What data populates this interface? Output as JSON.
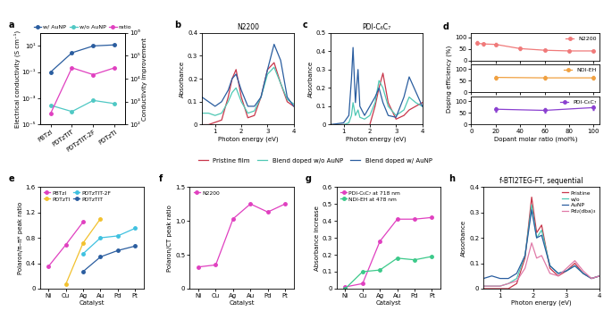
{
  "chart_data": [
    {
      "panel": "a",
      "type": "line",
      "log": "y",
      "marker": "o",
      "categories": [
        "PBTzI",
        "PDTzTIT",
        "PDTzTIT-2F",
        "PDTzTI"
      ],
      "y_label": "Electrical conductivity (S cm⁻¹)",
      "y2_label": "Conductivity improvement",
      "ylim": [
        1e-05,
        100
      ],
      "yticks": [
        {
          "value": 1e-05,
          "label": "10⁻⁵"
        },
        {
          "value": 0.001,
          "label": "10⁻³"
        },
        {
          "value": 0.1,
          "label": "10⁻¹"
        },
        {
          "value": 10,
          "label": "10¹"
        }
      ],
      "y2lim": [
        100,
        1000000
      ],
      "y2ticks": [
        {
          "value": 100,
          "label": "10²"
        },
        {
          "value": 1000,
          "label": "10³"
        },
        {
          "value": 10000,
          "label": "10⁴"
        },
        {
          "value": 100000,
          "label": "10⁵"
        },
        {
          "value": 1000000,
          "label": "10⁶"
        }
      ],
      "legend": "lower center",
      "series": [
        {
          "name": "w/ AuNP",
          "color": "#2a5d9f",
          "values": [
            0.1,
            3,
            10,
            12
          ]
        },
        {
          "name": "w/o AuNP",
          "color": "#4fc8c4",
          "values": [
            0.0003,
            0.0001,
            0.0007,
            0.0004
          ]
        },
        {
          "name": "ratio",
          "color": "#e040c0",
          "axis": "y2",
          "values": [
            300,
            30000,
            15000,
            30000
          ]
        }
      ]
    },
    {
      "panel": "b",
      "type": "line",
      "title": "N2200",
      "x_label": "Photon energy (eV)",
      "y_label": "Absorbance",
      "x": [
        0.5,
        0.75,
        1.0,
        1.25,
        1.5,
        1.65,
        1.8,
        2.0,
        2.25,
        2.5,
        2.75,
        3.0,
        3.25,
        3.5,
        3.75,
        4.0
      ],
      "xlim": [
        0.5,
        4
      ],
      "xticks": [
        1,
        2,
        3,
        4
      ],
      "ylim": [
        0,
        0.4
      ],
      "yticks": [
        0,
        0.1,
        0.2,
        0.3,
        0.4
      ],
      "legend": "upper center",
      "series": [
        {
          "name": "Pristine film",
          "color": "#c8364a",
          "values": [
            0.0,
            0.0,
            0.01,
            0.02,
            0.12,
            0.2,
            0.24,
            0.12,
            0.03,
            0.04,
            0.12,
            0.24,
            0.27,
            0.18,
            0.1,
            0.08
          ]
        },
        {
          "name": "Blend doped w/o AuNP",
          "color": "#4fc8b4",
          "values": [
            0.05,
            0.05,
            0.04,
            0.05,
            0.1,
            0.14,
            0.16,
            0.1,
            0.05,
            0.06,
            0.12,
            0.22,
            0.25,
            0.18,
            0.11,
            0.09
          ]
        },
        {
          "name": "Blend doped w/ AuNP",
          "color": "#2a5d9f",
          "values": [
            0.12,
            0.1,
            0.08,
            0.1,
            0.15,
            0.2,
            0.22,
            0.15,
            0.08,
            0.08,
            0.12,
            0.24,
            0.35,
            0.28,
            0.12,
            0.08
          ]
        }
      ]
    },
    {
      "panel": "c",
      "type": "line",
      "title": "PDI-C₆C₇",
      "x_label": "Photon energy (eV)",
      "y_label": "Absorbance",
      "x": [
        0.5,
        1.0,
        1.2,
        1.3,
        1.36,
        1.45,
        1.55,
        1.62,
        1.8,
        2.0,
        2.2,
        2.35,
        2.5,
        2.7,
        3.0,
        3.3,
        3.5,
        3.75,
        4.0
      ],
      "xlim": [
        0.5,
        4
      ],
      "xticks": [
        1,
        2,
        3,
        4
      ],
      "ylim": [
        0,
        0.5
      ],
      "yticks": [
        0,
        0.1,
        0.2,
        0.3,
        0.4,
        0.5
      ],
      "series": [
        {
          "name": "Pristine film",
          "color": "#c8364a",
          "values": [
            0,
            0,
            0,
            0,
            0,
            0,
            0,
            0,
            0,
            0,
            0.1,
            0.2,
            0.28,
            0.12,
            0.03,
            0.05,
            0.08,
            0.1,
            0.12
          ]
        },
        {
          "name": "Blend doped w/o AuNP",
          "color": "#4fc8b4",
          "values": [
            0,
            0,
            0.01,
            0.05,
            0.12,
            0.05,
            0.08,
            0.04,
            0.03,
            0.05,
            0.12,
            0.24,
            0.2,
            0.1,
            0.05,
            0.08,
            0.15,
            0.12,
            0.1
          ]
        },
        {
          "name": "Blend doped w/ AuNP",
          "color": "#2a5d9f",
          "values": [
            0,
            0.01,
            0.05,
            0.25,
            0.42,
            0.12,
            0.3,
            0.1,
            0.05,
            0.1,
            0.15,
            0.2,
            0.12,
            0.05,
            0.04,
            0.15,
            0.26,
            0.18,
            0.1
          ]
        }
      ]
    },
    {
      "panel": "d",
      "type": "errorbar",
      "marker": "o",
      "x_label": "Dopant molar ratio (mol%)",
      "y_label": "Doping efficiency (%)",
      "xlim": [
        0,
        105
      ],
      "xticks": [
        0,
        20,
        40,
        60,
        80,
        100
      ],
      "ylim": [
        0,
        120
      ],
      "yticks": [
        0,
        50,
        100
      ],
      "legend": "upper right",
      "panels": [
        {
          "name": "N2200",
          "color": "#f07a7a",
          "x": [
            5,
            10,
            20,
            40,
            60,
            80,
            100
          ],
          "values": [
            75,
            72,
            70,
            52,
            45,
            42,
            42
          ],
          "errors": [
            8,
            6,
            5,
            5,
            5,
            4,
            4
          ]
        },
        {
          "name": "NDI-EH",
          "color": "#f0a040",
          "x": [
            20,
            60,
            100
          ],
          "values": [
            65,
            63,
            63
          ],
          "errors": [
            8,
            8,
            8
          ]
        },
        {
          "name": "PDI-C₆C₇",
          "color": "#8a3fd0",
          "x": [
            20,
            60,
            100
          ],
          "values": [
            65,
            60,
            72
          ],
          "errors": [
            10,
            8,
            10
          ]
        }
      ]
    },
    {
      "panel": "e",
      "type": "line",
      "marker": "o",
      "categories": [
        "Ni",
        "Cu",
        "Ag",
        "Au",
        "Pd",
        "Pt"
      ],
      "x_label": "Catalyst",
      "y_label": "Polaron/π–π* peak ratio",
      "ylim": [
        0,
        1.6
      ],
      "yticks": [
        0,
        0.4,
        0.8,
        1.2,
        1.6
      ],
      "legend": "upper left",
      "series": [
        {
          "name": "PBTzI",
          "color": "#e040c0",
          "values": [
            0.35,
            0.69,
            1.05,
            null,
            null,
            null
          ]
        },
        {
          "name": "PDTzTI",
          "color": "#f2c12e",
          "values": [
            null,
            0.07,
            0.72,
            1.1,
            null,
            null
          ]
        },
        {
          "name": "PDTzTIT-2F",
          "color": "#3fc1e0",
          "values": [
            null,
            null,
            0.55,
            0.8,
            0.83,
            0.95
          ]
        },
        {
          "name": "PDTzTIT",
          "color": "#2a5d9f",
          "values": [
            null,
            null,
            0.27,
            0.5,
            0.6,
            0.67
          ]
        }
      ]
    },
    {
      "panel": "f",
      "type": "line",
      "marker": "o",
      "categories": [
        "Ni",
        "Cu",
        "Ag",
        "Au",
        "Pd",
        "Pt"
      ],
      "x_label": "Catalyst",
      "y_label": "Polaron/CT peak ratio",
      "ylim": [
        0,
        1.5
      ],
      "yticks": [
        0,
        0.5,
        1.0,
        1.5
      ],
      "legend": "upper left",
      "series": [
        {
          "name": "N2200",
          "color": "#e040c0",
          "values": [
            0.32,
            0.35,
            1.03,
            1.25,
            1.13,
            1.25
          ]
        }
      ]
    },
    {
      "panel": "g",
      "type": "line",
      "marker": "o",
      "categories": [
        "Ni",
        "Cu",
        "Ag",
        "Au",
        "Pd",
        "Pt"
      ],
      "x_label": "Catalyst",
      "y_label": "Absorbance increase",
      "ylim": [
        0,
        0.6
      ],
      "yticks": [
        0,
        0.1,
        0.2,
        0.3,
        0.4,
        0.5,
        0.6
      ],
      "legend": "upper left",
      "series": [
        {
          "name": "PDI-C₆C₇ at 718 nm",
          "color": "#e040c0",
          "values": [
            0.01,
            0.03,
            0.28,
            0.41,
            0.41,
            0.42
          ]
        },
        {
          "name": "NDI-EH at 478 nm",
          "color": "#3cc98a",
          "values": [
            0.0,
            0.1,
            0.11,
            0.18,
            0.17,
            0.19
          ]
        }
      ]
    },
    {
      "panel": "h",
      "type": "line",
      "title": "f-BTI2TEG-FT, sequential",
      "x_label": "Photon energy (eV)",
      "y_label": "Absorbance",
      "x": [
        0.5,
        0.75,
        1.0,
        1.25,
        1.5,
        1.75,
        1.95,
        2.1,
        2.25,
        2.5,
        2.75,
        3.0,
        3.25,
        3.5,
        3.75,
        4.0
      ],
      "xlim": [
        0.5,
        4
      ],
      "xticks": [
        1,
        2,
        3,
        4
      ],
      "ylim": [
        0,
        0.4
      ],
      "yticks": [
        0,
        0.1,
        0.2,
        0.3,
        0.4
      ],
      "legend": "upper right",
      "series": [
        {
          "name": "Pristine",
          "color": "#c8364a",
          "values": [
            0,
            0,
            0,
            0,
            0.02,
            0.12,
            0.36,
            0.22,
            0.25,
            0.08,
            0.05,
            0.07,
            0.1,
            0.06,
            0.04,
            0.05
          ]
        },
        {
          "name": "w/o",
          "color": "#4fc8b4",
          "values": [
            0.01,
            0.01,
            0.01,
            0.02,
            0.04,
            0.13,
            0.33,
            0.2,
            0.23,
            0.09,
            0.06,
            0.07,
            0.09,
            0.06,
            0.04,
            0.05
          ]
        },
        {
          "name": "AuNP",
          "color": "#2a5d9f",
          "values": [
            0.04,
            0.05,
            0.04,
            0.04,
            0.06,
            0.13,
            0.31,
            0.2,
            0.21,
            0.09,
            0.06,
            0.07,
            0.09,
            0.06,
            0.04,
            0.05
          ]
        },
        {
          "name": "Pd₂(dba)₃",
          "color": "#e07aa8",
          "values": [
            0.01,
            0.01,
            0.01,
            0.02,
            0.03,
            0.08,
            0.18,
            0.12,
            0.13,
            0.06,
            0.05,
            0.08,
            0.11,
            0.07,
            0.04,
            0.05
          ]
        }
      ]
    }
  ]
}
